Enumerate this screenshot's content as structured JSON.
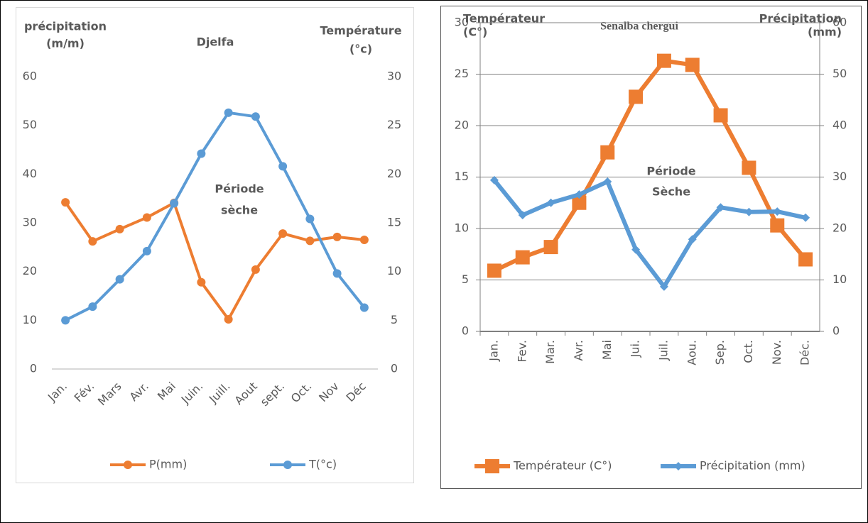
{
  "chart_data": [
    {
      "type": "line",
      "title": "Djelfa",
      "ylabel": [
        "précipitation",
        "(m/m)"
      ],
      "y2label": [
        "Température",
        "(°c)"
      ],
      "annotation": [
        "Période",
        "sèche"
      ],
      "categories": [
        "Jan.",
        "Fév.",
        "Mars",
        "Avr.",
        "Mai",
        "Juin.",
        "Juill.",
        "Aout",
        "sept.",
        "Oct.",
        "Nov",
        "Déc"
      ],
      "series": [
        {
          "name": "P(mm)",
          "color": "#ed7d31",
          "marker": "circle",
          "values": [
            34.2,
            26.2,
            28.7,
            31.1,
            34.1,
            17.8,
            10.2,
            20.4,
            27.8,
            26.3,
            27.1,
            26.5
          ]
        },
        {
          "name": "T(°c)",
          "color": "#5b9bd5",
          "marker": "circle",
          "axis": "y2",
          "values": [
            5.0,
            6.4,
            9.2,
            12.1,
            17.0,
            22.1,
            26.3,
            25.9,
            20.8,
            15.4,
            9.8,
            6.3
          ]
        }
      ],
      "ylim": [
        0,
        60
      ],
      "yticks": [
        0,
        10,
        20,
        30,
        40,
        50,
        60
      ],
      "y2lim": [
        0,
        30
      ],
      "y2ticks": [
        0,
        5,
        10,
        15,
        20,
        25,
        30
      ],
      "grid": false,
      "legend": "bottom",
      "xlabel_rotation": -45
    },
    {
      "type": "line",
      "title": "Senalba chergui",
      "ylabel": [
        "Températeur",
        "(C°)"
      ],
      "y2label": [
        "Précipitation",
        "(mm)"
      ],
      "annotation": [
        "Période",
        "Sèche"
      ],
      "categories": [
        "Jan.",
        "Fev.",
        "Mar.",
        "Avr.",
        "Mai",
        "Jui.",
        "Juil.",
        "Aou.",
        "Sep.",
        "Oct.",
        "Nov.",
        "Déc."
      ],
      "series": [
        {
          "name": "Températeur (C°)",
          "color": "#ed7d31",
          "marker": "square",
          "values": [
            5.9,
            7.2,
            8.2,
            12.5,
            17.4,
            22.8,
            26.3,
            25.9,
            21.0,
            15.9,
            10.3,
            7.0
          ]
        },
        {
          "name": "Précipitation (mm)",
          "color": "#5b9bd5",
          "marker": "diamond",
          "axis": "y2",
          "values": [
            29.4,
            22.6,
            25.0,
            26.6,
            29.1,
            15.9,
            8.7,
            17.9,
            24.1,
            23.2,
            23.3,
            22.1
          ]
        }
      ],
      "ylim": [
        0,
        30
      ],
      "yticks": [
        0,
        5,
        10,
        15,
        20,
        25,
        30
      ],
      "y2lim": [
        0,
        60
      ],
      "y2ticks": [
        0,
        10,
        20,
        30,
        40,
        50,
        60
      ],
      "grid": true,
      "legend": "bottom",
      "xlabel_rotation": -90
    }
  ]
}
